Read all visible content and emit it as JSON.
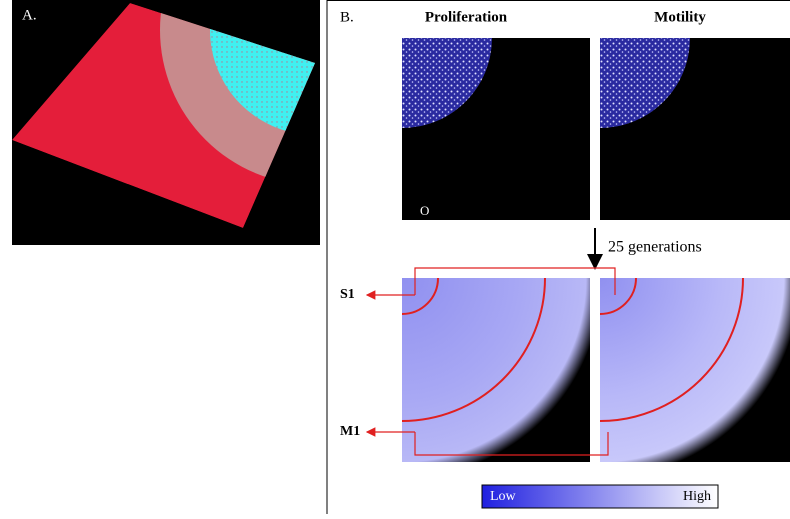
{
  "panel_a": {
    "label": "A."
  },
  "panel_b": {
    "label": "B.",
    "columns": [
      "Proliferation",
      "Motility"
    ],
    "origin_label": "O",
    "transition": "25 generations",
    "regions": [
      "S1",
      "M1"
    ],
    "colorbar": {
      "low": "Low",
      "high": "High"
    }
  }
}
